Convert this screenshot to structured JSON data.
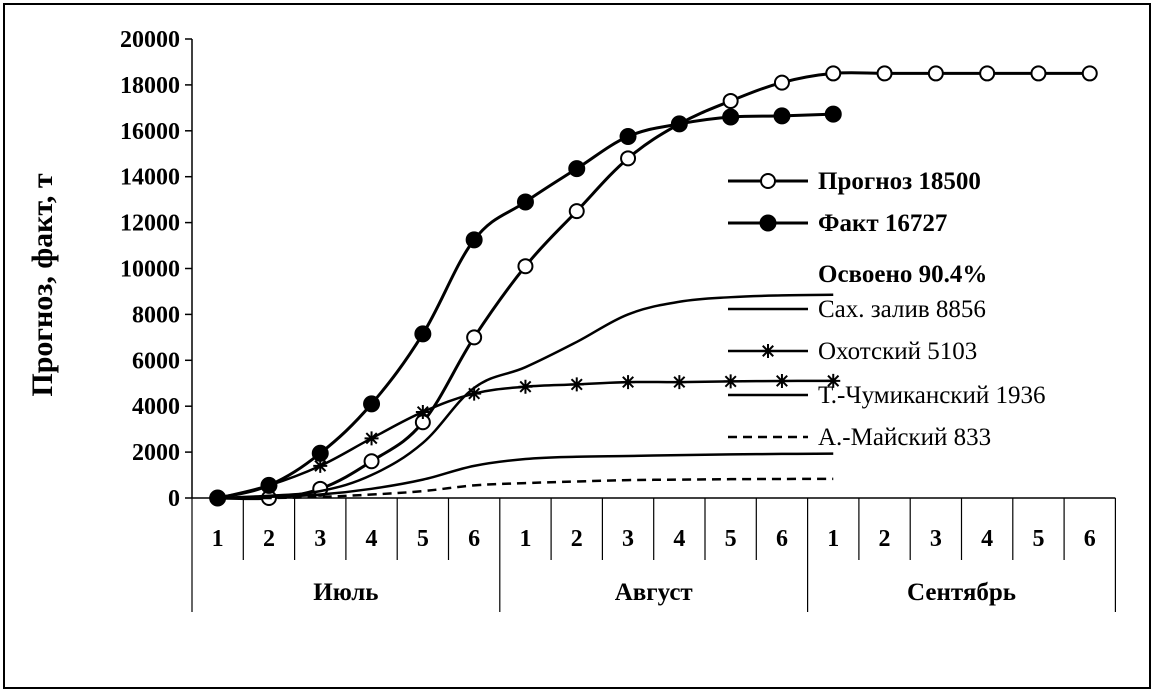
{
  "chart_data": {
    "type": "line",
    "xlabel": "",
    "ylabel": "Прогноз, факт, т",
    "ylim": [
      0,
      20000
    ],
    "yticks": [
      0,
      2000,
      4000,
      6000,
      8000,
      10000,
      12000,
      14000,
      16000,
      18000,
      20000
    ],
    "categories": [
      "1",
      "2",
      "3",
      "4",
      "5",
      "6",
      "1",
      "2",
      "3",
      "4",
      "5",
      "6",
      "1",
      "2",
      "3",
      "4",
      "5",
      "6"
    ],
    "months": [
      "Июль",
      "Август",
      "Сентябрь"
    ],
    "grid": false,
    "legend_position": "right",
    "legend_extra": "Освоено 90.4%",
    "series": [
      {
        "name": "Прогноз 18500",
        "marker": "open-circle",
        "dash": "solid",
        "bold": true,
        "values": [
          0,
          0,
          400,
          1600,
          3300,
          7000,
          10100,
          12500,
          14800,
          16300,
          17300,
          18100,
          18500,
          18500,
          18500,
          18500,
          18500,
          18500
        ]
      },
      {
        "name": "Факт 16727",
        "marker": "filled-circle",
        "dash": "solid",
        "bold": true,
        "values": [
          0,
          550,
          1950,
          4100,
          7150,
          11250,
          12900,
          14350,
          15750,
          16300,
          16600,
          16650,
          16727,
          null,
          null,
          null,
          null,
          null
        ]
      },
      {
        "name": "Сах. залив 8856",
        "marker": "none",
        "dash": "solid",
        "bold": false,
        "values": [
          0,
          100,
          300,
          1000,
          2400,
          4800,
          5700,
          6800,
          8000,
          8550,
          8750,
          8830,
          8856,
          null,
          null,
          null,
          null,
          null
        ]
      },
      {
        "name": "Охотский 5103",
        "marker": "star",
        "dash": "solid",
        "bold": false,
        "values": [
          0,
          550,
          1400,
          2600,
          3750,
          4550,
          4850,
          4950,
          5050,
          5050,
          5080,
          5100,
          5103,
          null,
          null,
          null,
          null,
          null
        ]
      },
      {
        "name": "Т.-Чумиканский  1936",
        "marker": "none",
        "dash": "solid",
        "bold": false,
        "values": [
          0,
          50,
          150,
          400,
          800,
          1400,
          1700,
          1800,
          1830,
          1870,
          1900,
          1920,
          1936,
          null,
          null,
          null,
          null,
          null
        ]
      },
      {
        "name": "А.-Майский  833",
        "marker": "none",
        "dash": "dashed",
        "bold": false,
        "values": [
          0,
          0,
          50,
          150,
          300,
          550,
          650,
          720,
          780,
          800,
          820,
          830,
          833,
          null,
          null,
          null,
          null,
          null
        ]
      }
    ]
  }
}
